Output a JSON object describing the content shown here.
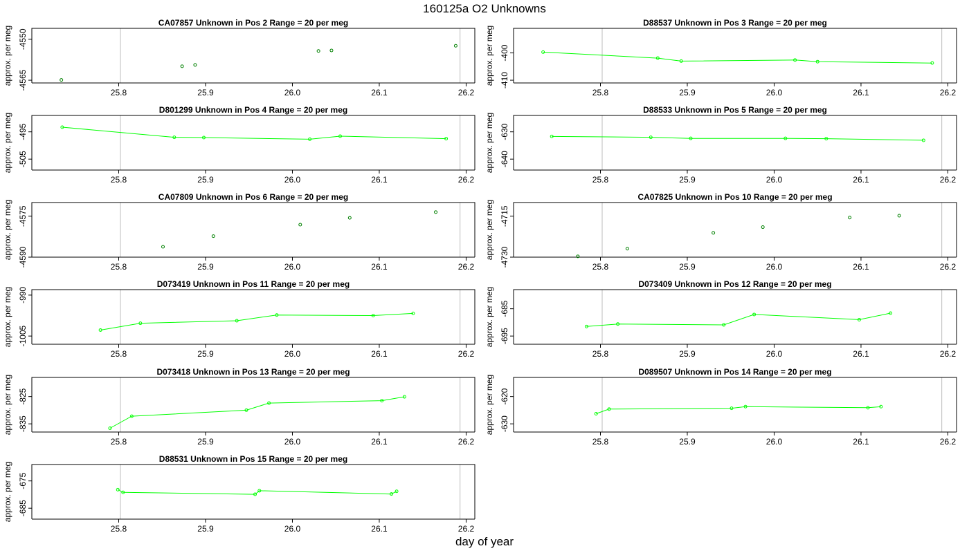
{
  "title": "160125a  O2 Unknowns",
  "xlabel": "day of year",
  "ylabel": "approx. per meg",
  "colors": {
    "line": "#00ff00",
    "point_outline": "#008000",
    "point_fill": "#000000",
    "frame": "#000000",
    "vline": "#bebebe"
  },
  "chart_data": [
    {
      "type": "scatter",
      "title": "CA07857    Unknown in Pos 2          Range = 20 per meg",
      "ylabel": "approx. per meg",
      "xlabel": "day of year",
      "lines": false,
      "xlim": [
        25.7,
        26.21
      ],
      "ylim": [
        -4566,
        -4546
      ],
      "xticks": [
        25.8,
        25.9,
        26.0,
        26.1,
        26.2
      ],
      "xtick_labels": [
        "25.8",
        "25.9",
        "26.0",
        "26.1",
        "26.2"
      ],
      "yticks": [
        -4565,
        -4550
      ],
      "ytick_labels": [
        "-4565",
        "-4550"
      ],
      "vlines": [
        25.802,
        26.193
      ],
      "grid": false,
      "legend": "none",
      "x": [
        25.734,
        25.873,
        25.888,
        26.03,
        26.045,
        26.188
      ],
      "y": [
        -4564.9,
        -4559.9,
        -4559.4,
        -4554.3,
        -4554.1,
        -4552.4
      ]
    },
    {
      "type": "line",
      "title": "D88537    Unknown in Pos 3          Range = 20 per meg",
      "ylabel": "approx. per meg",
      "xlabel": "day of year",
      "lines": true,
      "xlim": [
        25.7,
        26.21
      ],
      "ylim": [
        -411,
        -391
      ],
      "xticks": [
        25.8,
        25.9,
        26.0,
        26.1,
        26.2
      ],
      "xtick_labels": [
        "25.8",
        "25.9",
        "26.0",
        "26.1",
        "26.2"
      ],
      "yticks": [
        -410,
        -400
      ],
      "ytick_labels": [
        "-410",
        "-400"
      ],
      "vlines": [
        25.802,
        26.193
      ],
      "grid": false,
      "legend": "none",
      "x": [
        25.734,
        25.866,
        25.893,
        26.024,
        26.05,
        26.182
      ],
      "y": [
        -399.7,
        -401.9,
        -403.0,
        -402.6,
        -403.2,
        -403.7
      ]
    },
    {
      "type": "line",
      "title": "D801299    Unknown in Pos 4          Range = 20 per meg",
      "ylabel": "approx. per meg",
      "xlabel": "day of year",
      "lines": true,
      "xlim": [
        25.7,
        26.21
      ],
      "ylim": [
        -509,
        -489
      ],
      "xticks": [
        25.8,
        25.9,
        26.0,
        26.1,
        26.2
      ],
      "xtick_labels": [
        "25.8",
        "25.9",
        "26.0",
        "26.1",
        "26.2"
      ],
      "yticks": [
        -505,
        -495
      ],
      "ytick_labels": [
        "-505",
        "-495"
      ],
      "vlines": [
        25.802,
        26.193
      ],
      "grid": false,
      "legend": "none",
      "x": [
        25.735,
        25.864,
        25.898,
        26.02,
        26.055,
        26.177
      ],
      "y": [
        -493.3,
        -497.0,
        -497.1,
        -497.7,
        -496.6,
        -497.5
      ]
    },
    {
      "type": "line",
      "title": "D88533    Unknown in Pos 5          Range = 20 per meg",
      "ylabel": "approx. per meg",
      "xlabel": "day of year",
      "lines": true,
      "xlim": [
        25.7,
        26.21
      ],
      "ylim": [
        -644,
        -624
      ],
      "xticks": [
        25.8,
        25.9,
        26.0,
        26.1,
        26.2
      ],
      "xtick_labels": [
        "25.8",
        "25.9",
        "26.0",
        "26.1",
        "26.2"
      ],
      "yticks": [
        -640,
        -630
      ],
      "ytick_labels": [
        "-640",
        "-630"
      ],
      "vlines": [
        25.802,
        26.193
      ],
      "grid": false,
      "legend": "none",
      "x": [
        25.744,
        25.858,
        25.904,
        26.013,
        26.06,
        26.172
      ],
      "y": [
        -631.7,
        -632.0,
        -632.4,
        -632.4,
        -632.5,
        -633.1
      ]
    },
    {
      "type": "scatter",
      "title": "CA07809    Unknown in Pos 6          Range = 20 per meg",
      "ylabel": "approx. per meg",
      "xlabel": "day of year",
      "lines": false,
      "xlim": [
        25.7,
        26.21
      ],
      "ylim": [
        -4590,
        -4570
      ],
      "xticks": [
        25.8,
        25.9,
        26.0,
        26.1,
        26.2
      ],
      "xtick_labels": [
        "25.8",
        "25.9",
        "26.0",
        "26.1",
        "26.2"
      ],
      "yticks": [
        -4590,
        -4575
      ],
      "ytick_labels": [
        "-4590",
        "-4575"
      ],
      "vlines": [
        25.802,
        26.193
      ],
      "grid": false,
      "legend": "none",
      "x": [
        25.851,
        25.909,
        26.009,
        26.066,
        26.165
      ],
      "y": [
        -4586.2,
        -4582.3,
        -4578.1,
        -4575.6,
        -4573.5
      ]
    },
    {
      "type": "scatter",
      "title": "CA07825    Unknown in Pos 10          Range = 20 per meg",
      "ylabel": "approx. per meg",
      "xlabel": "day of year",
      "lines": false,
      "xlim": [
        25.7,
        26.21
      ],
      "ylim": [
        -4730,
        -4710
      ],
      "xticks": [
        25.8,
        25.9,
        26.0,
        26.1,
        26.2
      ],
      "xtick_labels": [
        "25.8",
        "25.9",
        "26.0",
        "26.1",
        "26.2"
      ],
      "yticks": [
        -4730,
        -4715
      ],
      "ytick_labels": [
        "-4730",
        "-4715"
      ],
      "vlines": [
        25.802,
        26.193
      ],
      "grid": false,
      "legend": "none",
      "x": [
        25.774,
        25.831,
        25.93,
        25.987,
        26.087,
        26.144
      ],
      "y": [
        -4729.7,
        -4726.9,
        -4721.1,
        -4719.0,
        -4715.5,
        -4714.8
      ]
    },
    {
      "type": "line",
      "title": "D073419    Unknown in Pos 11          Range = 20 per meg",
      "ylabel": "approx. per meg",
      "xlabel": "day of year",
      "lines": true,
      "xlim": [
        25.7,
        26.21
      ],
      "ylim": [
        -1008,
        -988
      ],
      "xticks": [
        25.8,
        25.9,
        26.0,
        26.1,
        26.2
      ],
      "xtick_labels": [
        "25.8",
        "25.9",
        "26.0",
        "26.1",
        "26.2"
      ],
      "yticks": [
        -1005,
        -990
      ],
      "ytick_labels": [
        "-1005",
        "-990"
      ],
      "vlines": [
        25.802,
        26.193
      ],
      "grid": false,
      "legend": "none",
      "x": [
        25.779,
        25.825,
        25.936,
        25.982,
        26.093,
        26.139
      ],
      "y": [
        -1002.8,
        -1000.3,
        -999.4,
        -997.3,
        -997.5,
        -996.7
      ]
    },
    {
      "type": "line",
      "title": "D073409    Unknown in Pos 12          Range = 20 per meg",
      "ylabel": "approx. per meg",
      "xlabel": "day of year",
      "lines": true,
      "xlim": [
        25.7,
        26.21
      ],
      "ylim": [
        -698,
        -678
      ],
      "xticks": [
        25.8,
        25.9,
        26.0,
        26.1,
        26.2
      ],
      "xtick_labels": [
        "25.8",
        "25.9",
        "26.0",
        "26.1",
        "26.2"
      ],
      "yticks": [
        -695,
        -685
      ],
      "ytick_labels": [
        "-695",
        "-685"
      ],
      "vlines": [
        25.802,
        26.193
      ],
      "grid": false,
      "legend": "none",
      "x": [
        25.784,
        25.82,
        25.942,
        25.977,
        26.098,
        26.134
      ],
      "y": [
        -691.5,
        -690.6,
        -690.9,
        -687.1,
        -689.0,
        -686.6
      ]
    },
    {
      "type": "line",
      "title": "D073418    Unknown in Pos 13          Range = 20 per meg",
      "ylabel": "approx. per meg",
      "xlabel": "day of year",
      "lines": true,
      "xlim": [
        25.7,
        26.21
      ],
      "ylim": [
        -838,
        -818
      ],
      "xticks": [
        25.8,
        25.9,
        26.0,
        26.1,
        26.2
      ],
      "xtick_labels": [
        "25.8",
        "25.9",
        "26.0",
        "26.1",
        "26.2"
      ],
      "yticks": [
        -835,
        -825
      ],
      "ytick_labels": [
        "-835",
        "-825"
      ],
      "vlines": [
        25.802,
        26.193
      ],
      "grid": false,
      "legend": "none",
      "x": [
        25.79,
        25.815,
        25.947,
        25.973,
        26.103,
        26.129
      ],
      "y": [
        -836.6,
        -832.2,
        -830.0,
        -827.4,
        -826.5,
        -825.1
      ]
    },
    {
      "type": "line",
      "title": "D089507    Unknown in Pos 14          Range = 20 per meg",
      "ylabel": "approx. per meg",
      "xlabel": "day of year",
      "lines": true,
      "xlim": [
        25.7,
        26.21
      ],
      "ylim": [
        -633,
        -613
      ],
      "xticks": [
        25.8,
        25.9,
        26.0,
        26.1,
        26.2
      ],
      "xtick_labels": [
        "25.8",
        "25.9",
        "26.0",
        "26.1",
        "26.2"
      ],
      "yticks": [
        -630,
        -620
      ],
      "ytick_labels": [
        "-630",
        "-620"
      ],
      "vlines": [
        25.802,
        26.193
      ],
      "grid": false,
      "legend": "none",
      "x": [
        25.795,
        25.81,
        25.951,
        25.967,
        26.108,
        26.123
      ],
      "y": [
        -626.3,
        -624.6,
        -624.3,
        -623.7,
        -624.1,
        -623.7
      ]
    },
    {
      "type": "line",
      "title": "D88531    Unknown in Pos 15          Range = 20 per meg",
      "ylabel": "approx. per meg",
      "xlabel": "day of year",
      "lines": true,
      "xlim": [
        25.7,
        26.21
      ],
      "ylim": [
        -689,
        -669
      ],
      "xticks": [
        25.8,
        25.9,
        26.0,
        26.1,
        26.2
      ],
      "xtick_labels": [
        "25.8",
        "25.9",
        "26.0",
        "26.1",
        "26.2"
      ],
      "yticks": [
        -685,
        -675
      ],
      "ytick_labels": [
        "-685",
        "-675"
      ],
      "vlines": [
        25.802,
        26.193
      ],
      "grid": false,
      "legend": "none",
      "x": [
        25.799,
        25.805,
        25.957,
        25.962,
        26.114,
        26.12
      ],
      "y": [
        -678.2,
        -679.2,
        -679.9,
        -678.6,
        -679.8,
        -678.8
      ]
    }
  ]
}
